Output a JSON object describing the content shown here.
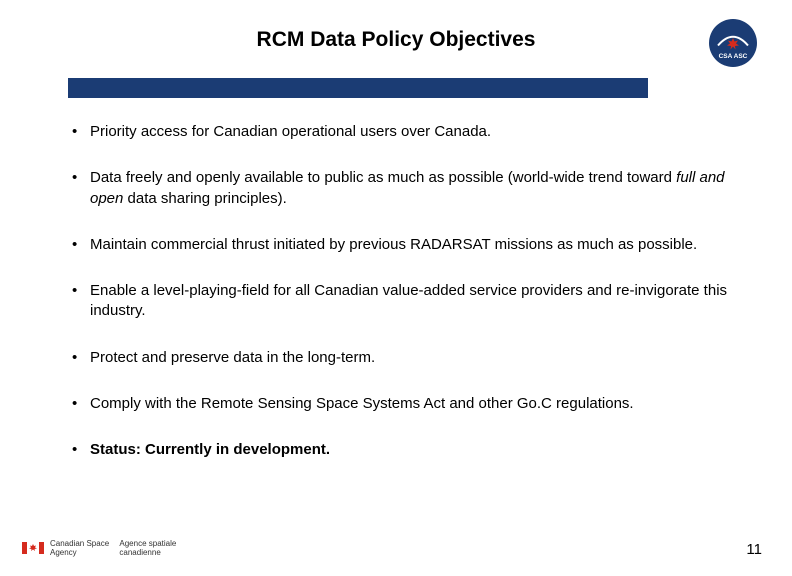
{
  "title": "RCM Data Policy Objectives",
  "title_bar_color": "#1b3c74",
  "bullets": [
    {
      "parts": [
        {
          "t": "Priority access for Canadian operational users over Canada."
        }
      ]
    },
    {
      "parts": [
        {
          "t": "Data freely and openly available to public as much as possible (world-wide trend toward "
        },
        {
          "t": "full and open",
          "style": "italic"
        },
        {
          "t": " data sharing principles)."
        }
      ]
    },
    {
      "parts": [
        {
          "t": "Maintain commercial thrust initiated by previous RADARSAT missions as much as possible."
        }
      ]
    },
    {
      "parts": [
        {
          "t": "Enable a level-playing-field for all Canadian value-added service providers and re-invigorate this industry."
        }
      ]
    },
    {
      "parts": [
        {
          "t": "Protect and preserve data in the long-term."
        }
      ]
    },
    {
      "parts": [
        {
          "t": "Comply with the Remote Sensing Space Systems Act and other Go.C regulations."
        }
      ]
    },
    {
      "parts": [
        {
          "t": "Status:  Currently in development.",
          "style": "bold"
        }
      ]
    }
  ],
  "footer": {
    "en_line1": "Canadian Space",
    "en_line2": "Agency",
    "fr_line1": "Agence spatiale",
    "fr_line2": "canadienne"
  },
  "page_number": "11",
  "csa_logo": {
    "bg": "#1b3c74",
    "maple": "#d52b1e",
    "text": "CSA  ASC"
  },
  "ca_flag": {
    "red": "#d52b1e",
    "white": "#ffffff"
  }
}
